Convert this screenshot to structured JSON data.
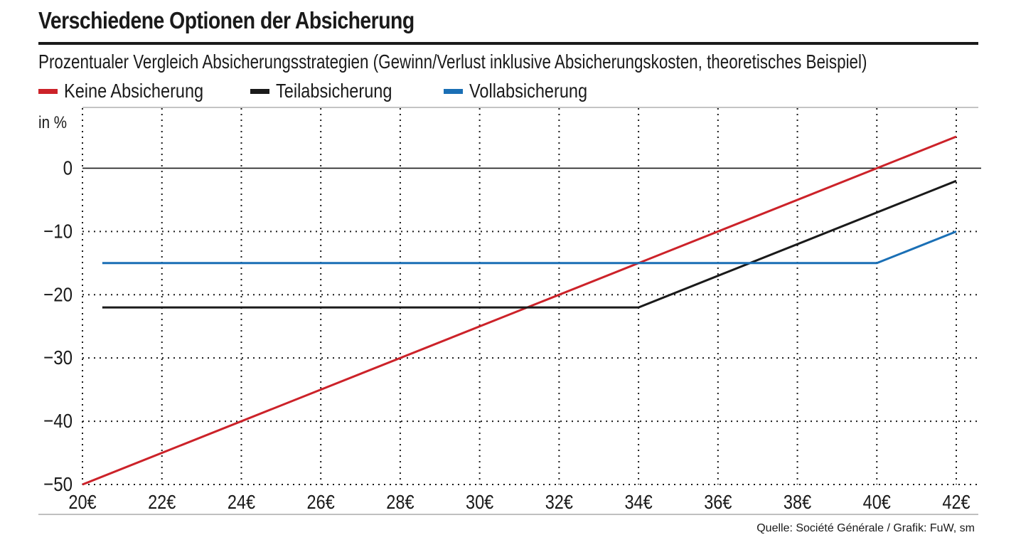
{
  "title": "Verschiedene Optionen der Absicherung",
  "subtitle": "Prozentualer Vergleich Absicherungsstrategien (Gewinn/Verlust inklusive Absicherungskosten, theoretisches Beispiel)",
  "source": "Quelle: Société Générale / Grafik: FuW, sm",
  "colors": {
    "text": "#1a1a1a",
    "red": "#cc2229",
    "black": "#1a1a1a",
    "blue": "#1a6fb5",
    "grid": "#1a1a1a"
  },
  "chart_data": {
    "type": "line",
    "ylabel": "in %",
    "xlabel": "",
    "x": [
      20,
      22,
      24,
      26,
      28,
      30,
      32,
      34,
      36,
      38,
      40,
      42
    ],
    "x_tick_labels": [
      "20€",
      "22€",
      "24€",
      "26€",
      "28€",
      "30€",
      "32€",
      "34€",
      "36€",
      "38€",
      "40€",
      "42€"
    ],
    "y_ticks": [
      0,
      -10,
      -20,
      -30,
      -40,
      -50
    ],
    "y_tick_labels": [
      "0",
      "−10",
      "−20",
      "−30",
      "−40",
      "−50"
    ],
    "xlim": [
      20,
      42.5
    ],
    "ylim": [
      -50,
      9.5
    ],
    "grid": true,
    "legend_position": "top",
    "series": [
      {
        "name": "Keine Absicherung",
        "color": "#cc2229",
        "points": [
          [
            20,
            -50
          ],
          [
            42,
            5
          ]
        ]
      },
      {
        "name": "Teilabsicherung",
        "color": "#1a1a1a",
        "points": [
          [
            20.5,
            -22
          ],
          [
            34,
            -22
          ],
          [
            42,
            -2
          ]
        ]
      },
      {
        "name": "Vollabsicherung",
        "color": "#1a6fb5",
        "points": [
          [
            20.5,
            -15
          ],
          [
            40,
            -15
          ],
          [
            42,
            -10
          ]
        ]
      }
    ]
  }
}
